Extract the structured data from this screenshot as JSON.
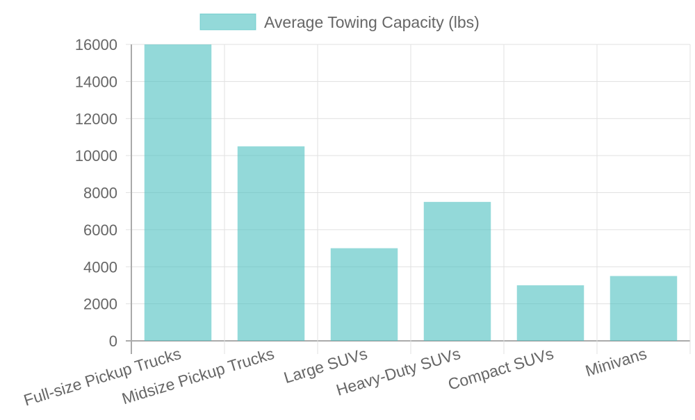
{
  "chart_data": {
    "type": "bar",
    "title": "",
    "legend": {
      "position": "top",
      "entries": [
        "Average Towing Capacity (lbs)"
      ]
    },
    "categories": [
      "Full-size Pickup Trucks",
      "Midsize Pickup Trucks",
      "Large SUVs",
      "Heavy-Duty SUVs",
      "Compact SUVs",
      "Minivans"
    ],
    "series": [
      {
        "name": "Average Towing Capacity (lbs)",
        "values": [
          16000,
          10500,
          5000,
          7500,
          3000,
          3500
        ],
        "color": "#4bc0c0"
      }
    ],
    "xlabel": "",
    "ylabel": "",
    "ylim": [
      0,
      16000
    ],
    "yticks": [
      "0",
      "2000",
      "4000",
      "6000",
      "8000",
      "10000",
      "12000",
      "14000",
      "16000"
    ],
    "grid": true
  }
}
